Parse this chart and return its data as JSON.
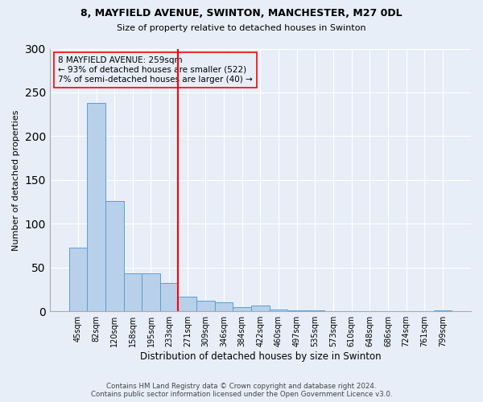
{
  "title1": "8, MAYFIELD AVENUE, SWINTON, MANCHESTER, M27 0DL",
  "title2": "Size of property relative to detached houses in Swinton",
  "xlabel": "Distribution of detached houses by size in Swinton",
  "ylabel": "Number of detached properties",
  "bar_labels": [
    "45sqm",
    "82sqm",
    "120sqm",
    "158sqm",
    "195sqm",
    "233sqm",
    "271sqm",
    "309sqm",
    "346sqm",
    "384sqm",
    "422sqm",
    "460sqm",
    "497sqm",
    "535sqm",
    "573sqm",
    "610sqm",
    "648sqm",
    "686sqm",
    "724sqm",
    "761sqm",
    "799sqm"
  ],
  "bar_values": [
    73,
    238,
    126,
    43,
    43,
    32,
    17,
    12,
    10,
    5,
    7,
    2,
    1,
    1,
    0,
    0,
    0,
    0,
    0,
    0,
    1
  ],
  "bar_color": "#b8d0ea",
  "bar_edge_color": "#5a9fd4",
  "annotation_text": "8 MAYFIELD AVENUE: 259sqm\n← 93% of detached houses are smaller (522)\n7% of semi-detached houses are larger (40) →",
  "vline_position": 6,
  "vline_color": "red",
  "footer1": "Contains HM Land Registry data © Crown copyright and database right 2024.",
  "footer2": "Contains public sector information licensed under the Open Government Licence v3.0.",
  "bg_color": "#e8eef8",
  "ylim": [
    0,
    300
  ],
  "yticks": [
    0,
    50,
    100,
    150,
    200,
    250,
    300
  ]
}
